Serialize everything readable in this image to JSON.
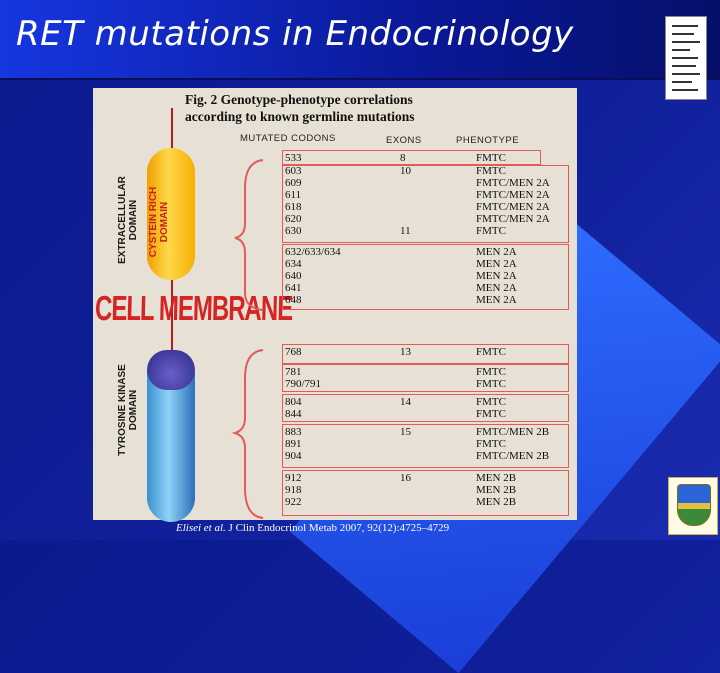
{
  "slide": {
    "title": "RET mutations in Endocrinology",
    "citation_authors": "Elisei et al.",
    "citation_rest": " J Clin Endocrinol Metab 2007, 92(12):4725–4729"
  },
  "figure": {
    "title_line1": "Fig. 2 Genotype-phenotype correlations",
    "title_line2": "according to known germline mutations",
    "col_codons": "MUTATED CODONS",
    "col_exons": "EXONS",
    "col_phenotype": "PHENOTYPE",
    "label_extracellular": "EXTRACELLULAR\nDOMAIN",
    "label_cystein": "CYSTEIN RICH\nDOMAIN",
    "label_cell_membrane": "CELL MEMBRANE",
    "label_tyrosine": "TYROSINE KINASE\nDOMAIN",
    "rows": [
      {
        "codon": "533",
        "exon": "8",
        "phenotype": "FMTC"
      },
      {
        "codon": "603",
        "exon": "10",
        "phenotype": "FMTC"
      },
      {
        "codon": "609",
        "exon": "",
        "phenotype": "FMTC/MEN 2A"
      },
      {
        "codon": "611",
        "exon": "",
        "phenotype": "FMTC/MEN 2A"
      },
      {
        "codon": "618",
        "exon": "",
        "phenotype": "FMTC/MEN 2A"
      },
      {
        "codon": "620",
        "exon": "",
        "phenotype": "FMTC/MEN 2A"
      },
      {
        "codon": "630",
        "exon": "11",
        "phenotype": "FMTC"
      },
      {
        "codon": "632/633/634",
        "exon": "",
        "phenotype": "MEN 2A"
      },
      {
        "codon": "634",
        "exon": "",
        "phenotype": "MEN 2A"
      },
      {
        "codon": "640",
        "exon": "",
        "phenotype": "MEN 2A"
      },
      {
        "codon": "641",
        "exon": "",
        "phenotype": "MEN 2A"
      },
      {
        "codon": "648",
        "exon": "",
        "phenotype": "MEN 2A"
      },
      {
        "codon": "768",
        "exon": "13",
        "phenotype": "FMTC"
      },
      {
        "codon": "781",
        "exon": "",
        "phenotype": "FMTC"
      },
      {
        "codon": "790/791",
        "exon": "",
        "phenotype": "FMTC"
      },
      {
        "codon": "804",
        "exon": "14",
        "phenotype": "FMTC"
      },
      {
        "codon": "844",
        "exon": "",
        "phenotype": "FMTC"
      },
      {
        "codon": "883",
        "exon": "15",
        "phenotype": "FMTC/MEN 2B"
      },
      {
        "codon": "891",
        "exon": "",
        "phenotype": "FMTC"
      },
      {
        "codon": "904",
        "exon": "",
        "phenotype": "FMTC/MEN 2B"
      },
      {
        "codon": "912",
        "exon": "16",
        "phenotype": "MEN 2B"
      },
      {
        "codon": "918",
        "exon": "",
        "phenotype": "MEN 2B"
      },
      {
        "codon": "922",
        "exon": "",
        "phenotype": "MEN 2B"
      }
    ]
  }
}
